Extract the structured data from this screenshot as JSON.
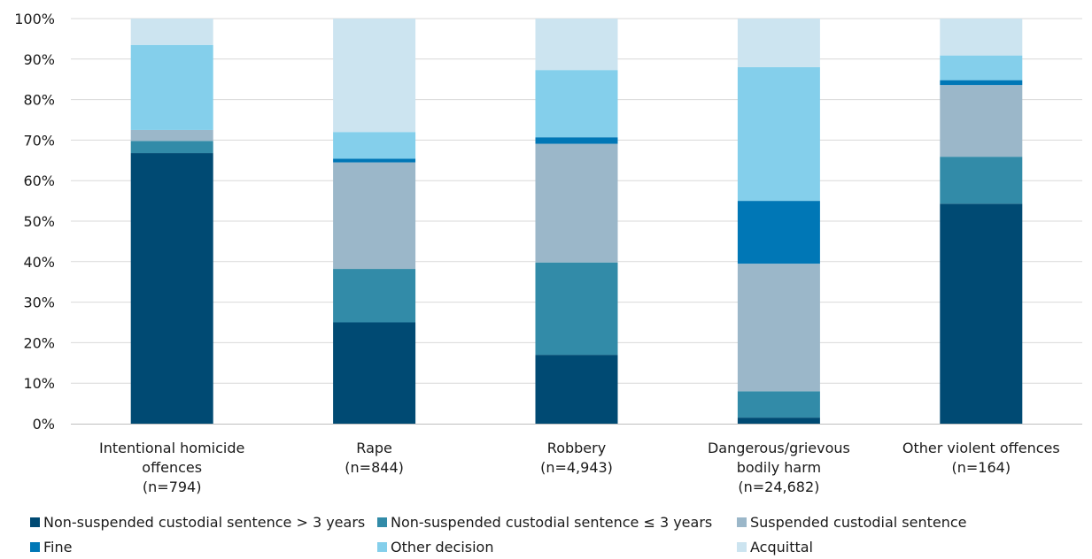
{
  "chart_data": {
    "type": "bar",
    "stacked": true,
    "percent": true,
    "categories": [
      [
        "Intentional homicide",
        "offences",
        "(n=794)"
      ],
      [
        "Rape",
        "(n=844)"
      ],
      [
        "Robbery",
        "(n=4,943)"
      ],
      [
        "Dangerous/grievous",
        "bodily harm",
        "(n=24,682)"
      ],
      [
        "Other violent offences",
        "(n=164)"
      ]
    ],
    "y_ticks": [
      "0%",
      "10%",
      "20%",
      "30%",
      "40%",
      "50%",
      "60%",
      "70%",
      "80%",
      "90%",
      "100%"
    ],
    "ylim": [
      0,
      100
    ],
    "grid": true,
    "legend_position": "bottom",
    "series": [
      {
        "name": "Non-suspended custodial sentence > 3 years",
        "color": "#004a73",
        "values": [
          66.8,
          25.0,
          17.0,
          1.5,
          54.3
        ]
      },
      {
        "name": "Non-suspended custodial sentence ≤ 3 years",
        "color": "#328ba8",
        "values": [
          3.0,
          13.2,
          22.8,
          6.5,
          11.6
        ]
      },
      {
        "name": "Suspended custodial sentence",
        "color": "#9bb7c9",
        "values": [
          2.7,
          26.3,
          29.3,
          31.5,
          17.7
        ]
      },
      {
        "name": "Fine",
        "color": "#0077b6",
        "values": [
          0.0,
          0.9,
          1.6,
          15.5,
          1.2
        ]
      },
      {
        "name": "Other decision",
        "color": "#84cfeb",
        "values": [
          21.0,
          6.6,
          16.6,
          33.0,
          6.1
        ]
      },
      {
        "name": "Acquittal",
        "color": "#cce4f0",
        "values": [
          6.5,
          28.0,
          12.7,
          12.0,
          9.1
        ]
      }
    ]
  }
}
